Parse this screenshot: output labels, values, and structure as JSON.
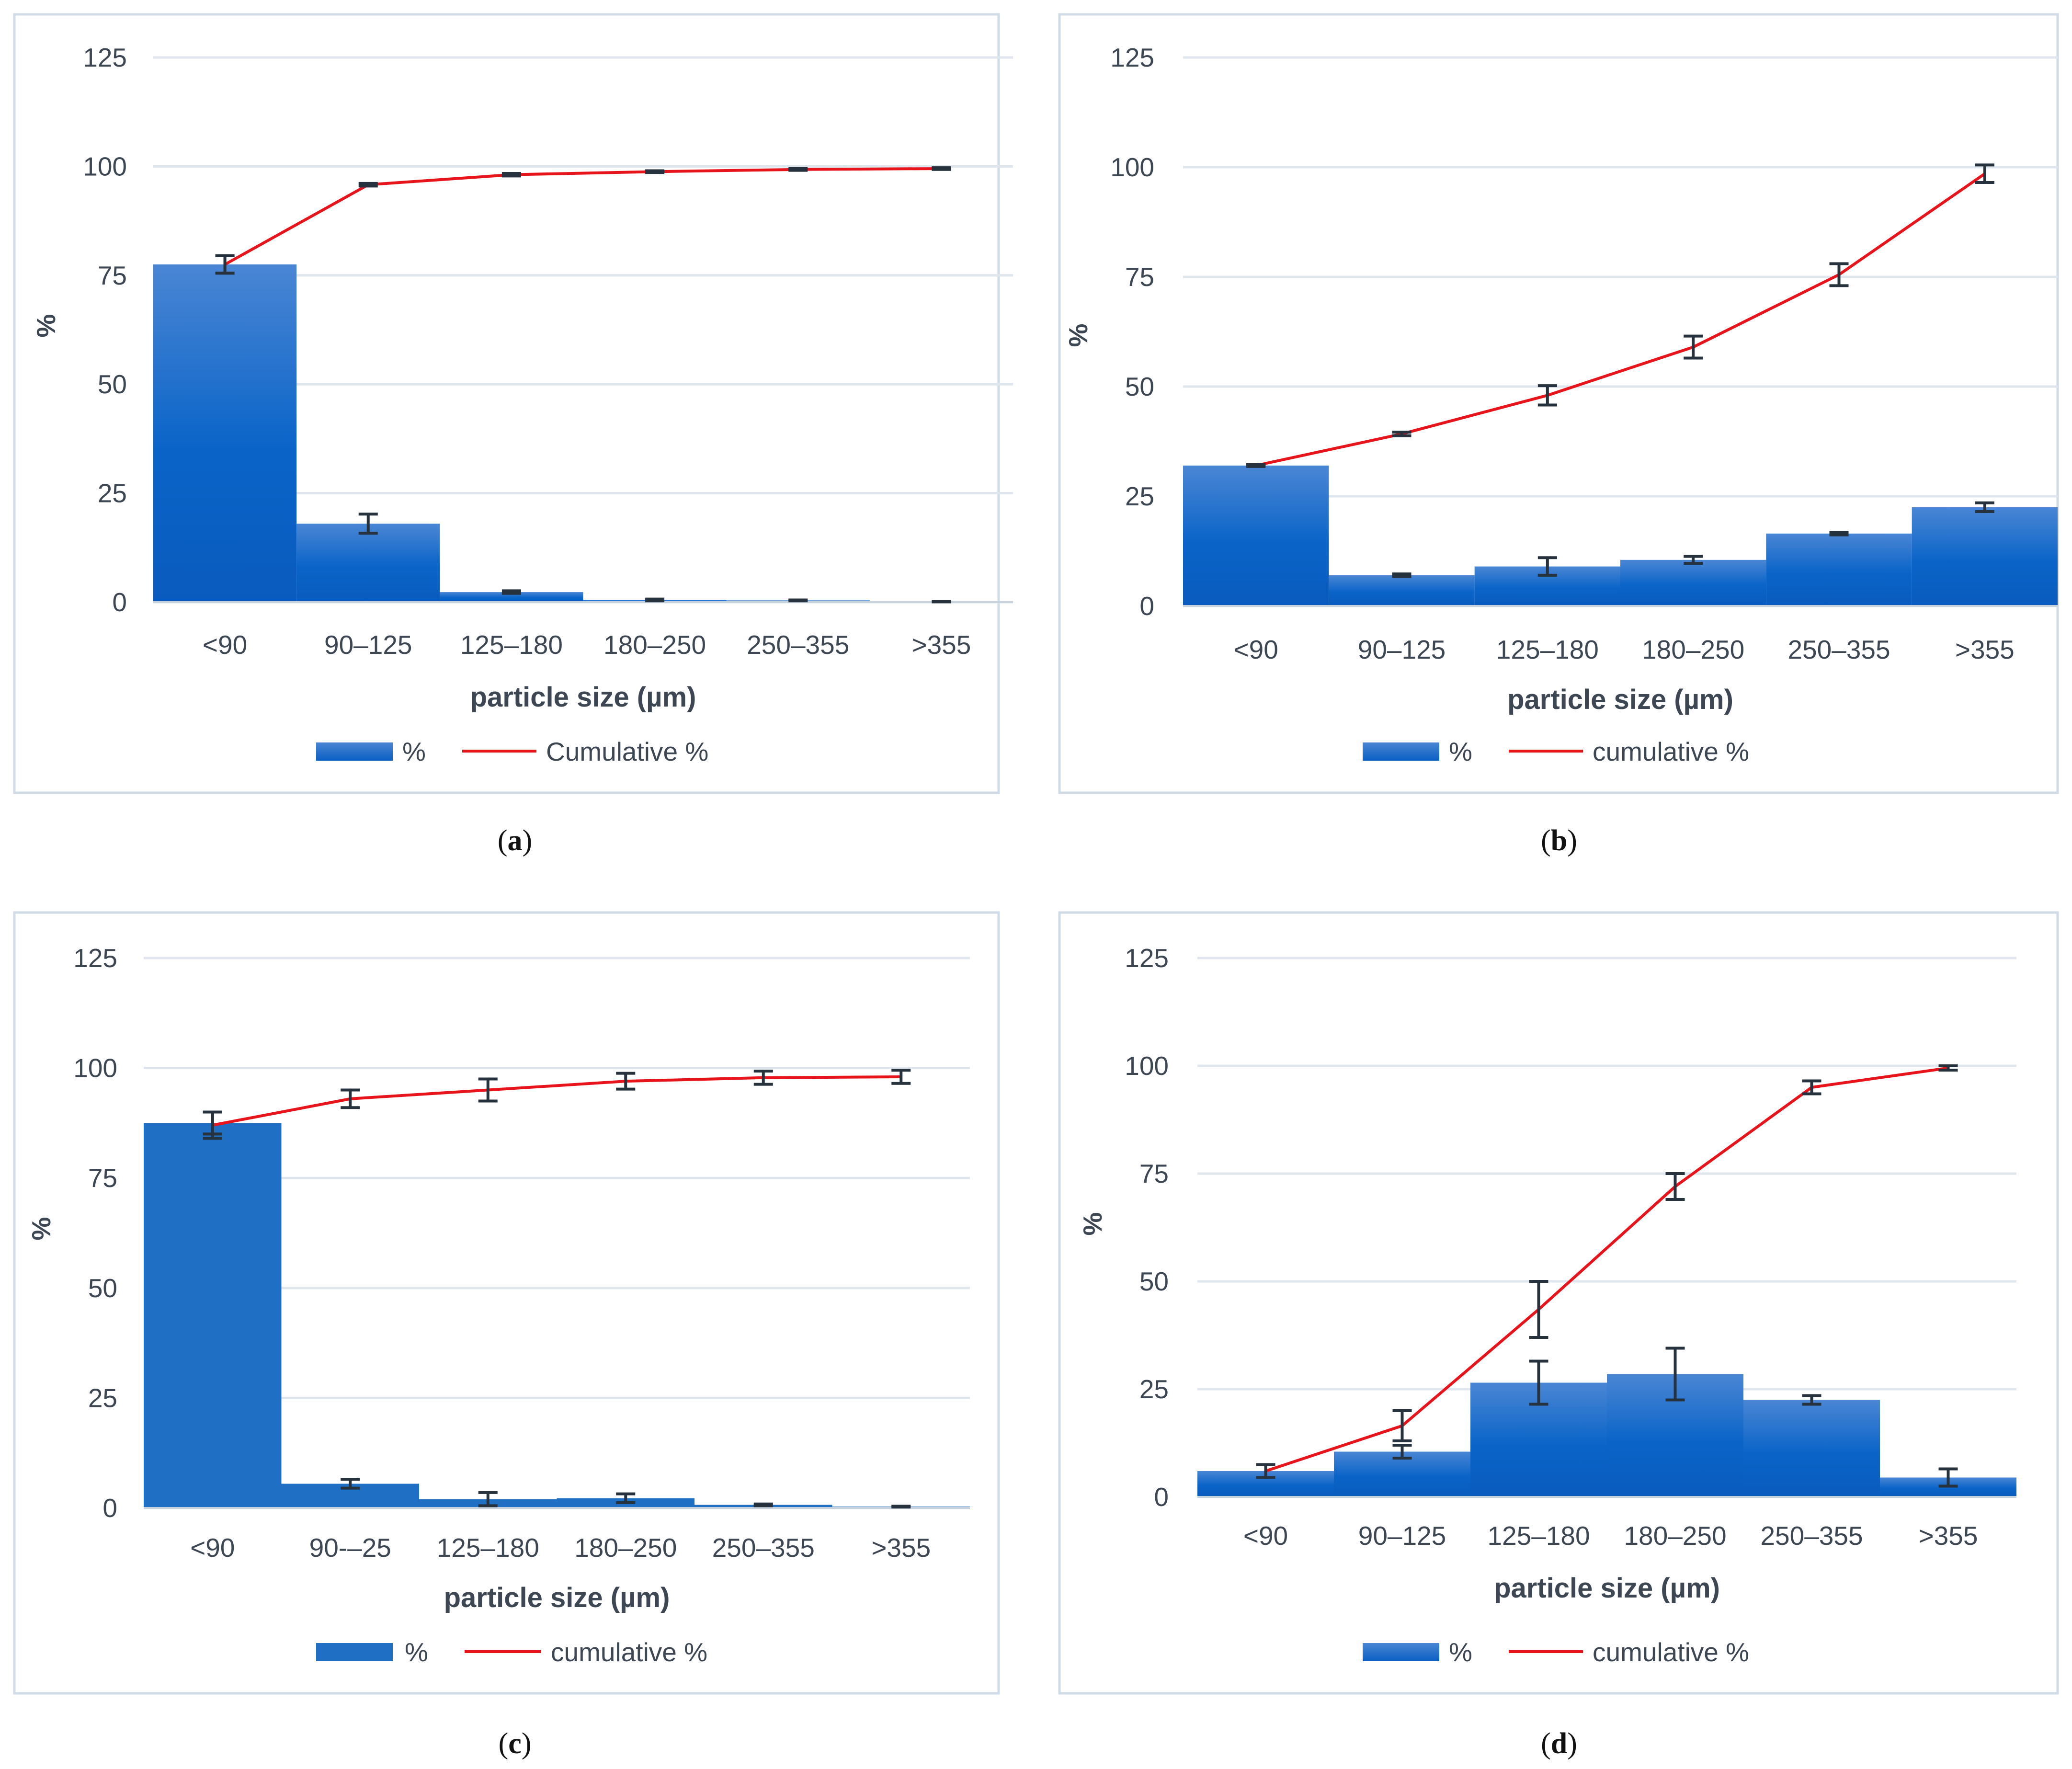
{
  "colors": {
    "bar_top": "#4a86d4",
    "bar_bottom": "#0a5fc3",
    "bar_flat": "#1f6fc5",
    "line": "#e8141c",
    "error": "#26323e",
    "grid": "#dfe6ee",
    "frame": "#cfdbe6"
  },
  "chart_data": [
    {
      "panel": "a",
      "caption_letter": "a",
      "type": "bar+line",
      "categories": [
        "<90",
        "90–125",
        "125–180",
        "180–250",
        "250–355",
        ">355"
      ],
      "xlabel": "particle size (µm)",
      "ylabel": "%",
      "ylim": [
        0,
        125
      ],
      "yticks": [
        "0",
        "25",
        "50",
        "75",
        "100",
        "125"
      ],
      "legend": {
        "bar": "%",
        "line": "Cumulative %"
      },
      "gradient": true,
      "series": [
        {
          "name": "%",
          "kind": "bar",
          "values": [
            77.5,
            18.0,
            2.3,
            0.5,
            0.4,
            0.1
          ],
          "errors": [
            2.0,
            2.2,
            0.3,
            0.2,
            0.1,
            0.05
          ]
        },
        {
          "name": "Cumulative %",
          "kind": "line",
          "values": [
            77.5,
            95.8,
            98.1,
            98.8,
            99.3,
            99.5
          ],
          "errors": [
            2.0,
            0.3,
            0.3,
            0.2,
            0.2,
            0.2
          ]
        }
      ]
    },
    {
      "panel": "b",
      "caption_letter": "b",
      "type": "bar+line",
      "categories": [
        "<90",
        "90–125",
        "125–180",
        "180–250",
        "250–355",
        ">355"
      ],
      "xlabel": "particle size (µm)",
      "ylabel": "%",
      "ylim": [
        0,
        125
      ],
      "yticks": [
        "0",
        "25",
        "50",
        "75",
        "100",
        "125"
      ],
      "legend": {
        "bar": "%",
        "line": "cumulative %"
      },
      "gradient": true,
      "series": [
        {
          "name": "%",
          "kind": "bar",
          "values": [
            32.0,
            7.0,
            9.0,
            10.5,
            16.5,
            22.5
          ],
          "errors": [
            0.2,
            0.3,
            2.0,
            0.8,
            0.3,
            1.0
          ]
        },
        {
          "name": "cumulative %",
          "kind": "line",
          "values": [
            32.0,
            39.2,
            48.0,
            59.0,
            75.5,
            98.5
          ],
          "errors": [
            0.2,
            0.4,
            2.2,
            2.5,
            2.5,
            2.0
          ]
        }
      ]
    },
    {
      "panel": "c",
      "caption_letter": "c",
      "type": "bar+line",
      "categories": [
        "<90",
        "90-–25",
        "125–180",
        "180–250",
        "250–355",
        ">355"
      ],
      "xlabel": "particle size (µm)",
      "ylabel": "%",
      "ylim": [
        0,
        125
      ],
      "yticks": [
        "0",
        "25",
        "50",
        "75",
        "100",
        "125"
      ],
      "legend": {
        "bar": "%",
        "line": "cumulative %"
      },
      "gradient": false,
      "series": [
        {
          "name": "%",
          "kind": "bar",
          "values": [
            87.5,
            5.5,
            2.0,
            2.2,
            0.7,
            0.3
          ],
          "errors": [
            2.5,
            1.0,
            1.5,
            1.0,
            0.2,
            0.1
          ]
        },
        {
          "name": "cumulative %",
          "kind": "line",
          "values": [
            87.0,
            93.0,
            95.0,
            97.0,
            97.8,
            98.0
          ],
          "errors": [
            3.0,
            2.0,
            2.5,
            1.8,
            1.5,
            1.5
          ]
        }
      ]
    },
    {
      "panel": "d",
      "caption_letter": "d",
      "type": "bar+line",
      "categories": [
        "<90",
        "90–125",
        "125–180",
        "180–250",
        "250–355",
        ">355"
      ],
      "xlabel": "particle size (µm)",
      "ylabel": "%",
      "ylim": [
        0,
        125
      ],
      "yticks": [
        "0",
        "25",
        "50",
        "75",
        "100",
        "125"
      ],
      "legend": {
        "bar": "%",
        "line": "cumulative %"
      },
      "gradient": true,
      "series": [
        {
          "name": "%",
          "kind": "bar",
          "values": [
            6.0,
            10.5,
            26.5,
            28.5,
            22.5,
            4.5
          ],
          "errors": [
            1.5,
            1.5,
            5.0,
            6.0,
            1.0,
            2.0
          ]
        },
        {
          "name": "cumulative %",
          "kind": "line",
          "values": [
            6.0,
            16.5,
            43.5,
            72.0,
            95.0,
            99.5
          ],
          "errors": [
            1.5,
            3.5,
            6.5,
            3.0,
            1.5,
            0.5
          ]
        }
      ]
    }
  ]
}
